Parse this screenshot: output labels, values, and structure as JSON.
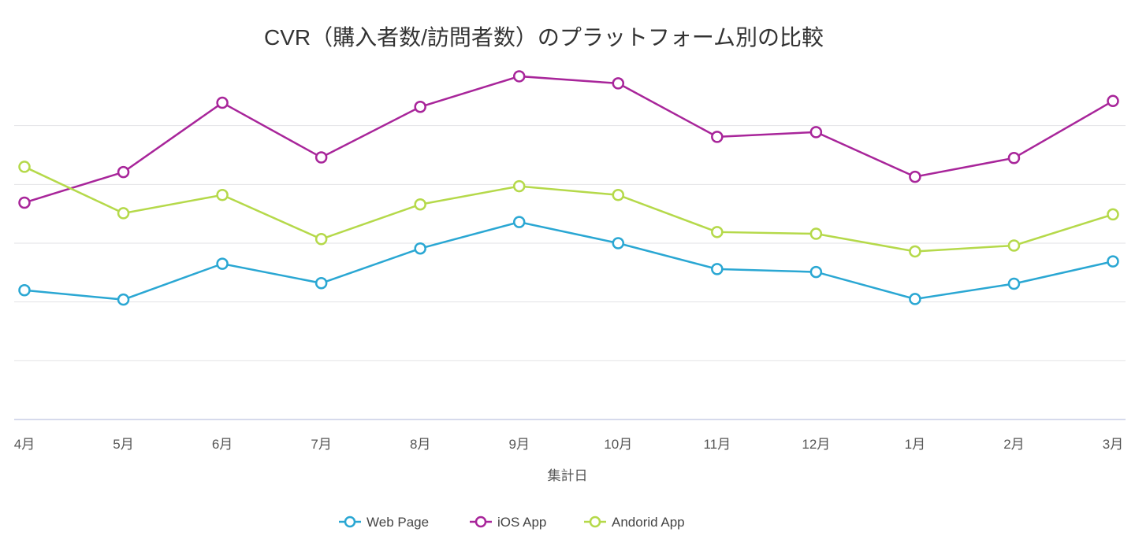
{
  "chart_data": {
    "type": "line",
    "title": "CVR（購入者数/訪問者数）のプラットフォーム別の比較",
    "xlabel": "集計日",
    "ylabel": "",
    "ylim": [
      0,
      6
    ],
    "y_gridlines": [
      1,
      2,
      3,
      4,
      5
    ],
    "y_tick_labels_shown": false,
    "grid": true,
    "legend_position": "bottom",
    "categories": [
      "4月",
      "5月",
      "6月",
      "7月",
      "8月",
      "9月",
      "10月",
      "11月",
      "12月",
      "1月",
      "2月",
      "3月"
    ],
    "series": [
      {
        "name": "Web Page",
        "color": "#2aa7d3",
        "values": [
          2.2,
          2.04,
          2.65,
          2.32,
          2.91,
          3.36,
          3.0,
          2.56,
          2.51,
          2.05,
          2.31,
          2.69
        ]
      },
      {
        "name": "iOS App",
        "color": "#a8259a",
        "values": [
          3.69,
          4.21,
          5.39,
          4.46,
          5.32,
          5.84,
          5.72,
          4.81,
          4.89,
          4.13,
          4.45,
          5.42
        ]
      },
      {
        "name": "Andorid App",
        "color": "#b5d94a",
        "values": [
          4.3,
          3.51,
          3.82,
          3.07,
          3.66,
          3.97,
          3.82,
          3.19,
          3.16,
          2.86,
          2.96,
          3.49
        ]
      }
    ]
  }
}
